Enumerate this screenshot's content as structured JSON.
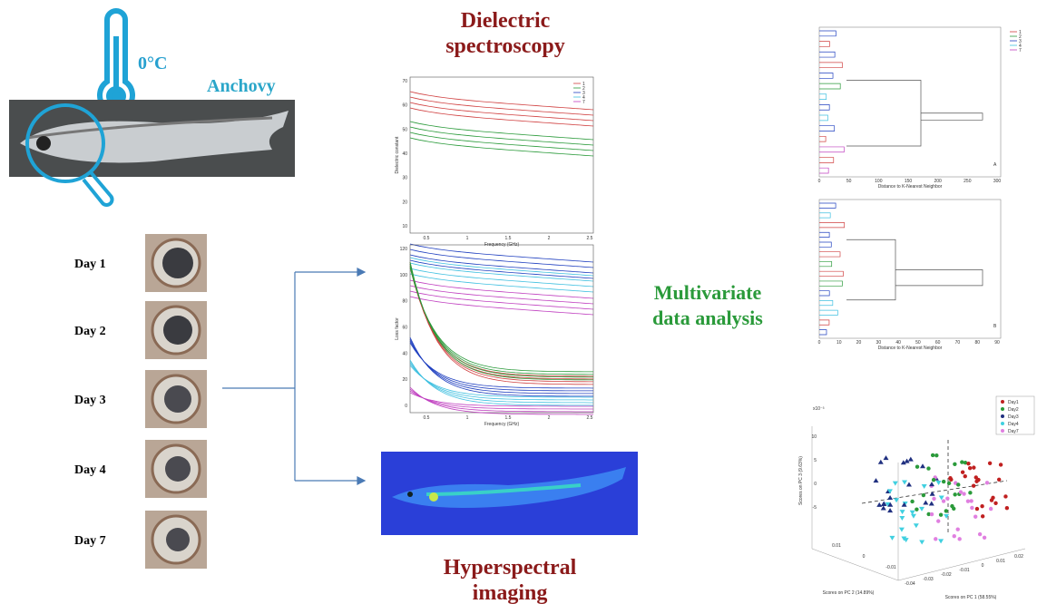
{
  "header": {
    "temperature": "0°C",
    "species": "Anchovy"
  },
  "days": [
    "Day 1",
    "Day 2",
    "Day 3",
    "Day 4",
    "Day 7"
  ],
  "dielectric_title": [
    "Dielectric",
    "spectroscopy"
  ],
  "dielectric_plot": {
    "top_ylabel": "Dielectric constant",
    "bottom_ylabel": "Loss factor",
    "xlabel": "Frequency (GHz)",
    "xticks": [
      "0.5",
      "1",
      "1.5",
      "2",
      "2.5"
    ],
    "top_yticks": [
      "70",
      "60",
      "50",
      "40",
      "30",
      "20",
      "10"
    ],
    "bottom_yticks": [
      "120",
      "100",
      "80",
      "60",
      "40",
      "20",
      "0"
    ],
    "legend": [
      "1",
      "2",
      "3",
      "4",
      "7"
    ]
  },
  "hyperspectral_title": [
    "Hyperspectral",
    "imaging"
  ],
  "multivariate_title": [
    "Multivariate",
    "data analysis"
  ],
  "dendrograms": {
    "xlabel": "Distance to K-Nearest Neighbor",
    "panel_a": "A",
    "panel_b": "B",
    "a_xticks": [
      "0",
      "50",
      "100",
      "150",
      "200",
      "250",
      "300"
    ],
    "b_xticks": [
      "0",
      "10",
      "20",
      "30",
      "40",
      "50",
      "60",
      "70",
      "80",
      "90"
    ],
    "legend": [
      "1",
      "2",
      "3",
      "4",
      "7"
    ]
  },
  "pca": {
    "exponent": "x10⁻³",
    "pc1_label": "Scores on PC 1 (58.55%)",
    "pc2_label": "Scores on PC 2 (14.89%)",
    "pc3_label": "Scores on PC 3 (9.63%)",
    "z_ticks": [
      "10",
      "5",
      "0",
      "-5"
    ],
    "pc1_ticks": [
      "-0.04",
      "-0.03",
      "-0.02",
      "-0.01",
      "0",
      "0.01",
      "0.02"
    ],
    "pc2_ticks": [
      "0.01",
      "0",
      "-0.01"
    ],
    "legend": [
      "Day1",
      "Day2",
      "Day3",
      "Day4",
      "Day7"
    ]
  }
}
